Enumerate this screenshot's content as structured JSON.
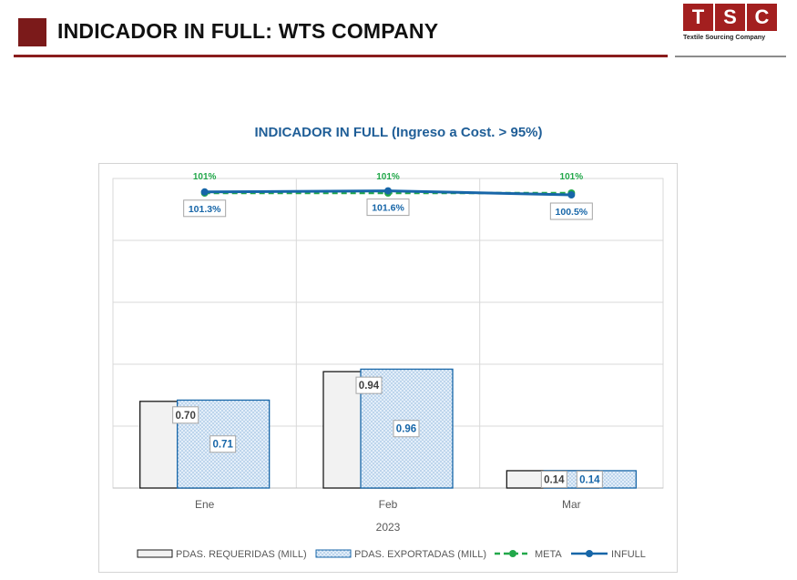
{
  "header": {
    "title": "INDICADOR IN FULL: WTS COMPANY"
  },
  "logo": {
    "letters": [
      "T",
      "S",
      "C"
    ],
    "tagline": "Textile Sourcing Company",
    "color": "#a31f1f"
  },
  "colors": {
    "accent": "#8a1c1c",
    "infull": "#1766a8",
    "meta": "#22a84a",
    "requeridas_fill": "#f2f2f2",
    "exportadas_fill": "#dbe9f7"
  },
  "chart_data": {
    "type": "bar",
    "title": "INDICADOR IN FULL (Ingreso a Cost. > 95%)",
    "categories": [
      "Ene",
      "Feb",
      "Mar"
    ],
    "xlabel": "2023",
    "series": [
      {
        "name": "PDAS. REQUERIDAS (MILL)",
        "type": "bar",
        "values": [
          0.7,
          0.94,
          0.14
        ],
        "labels": [
          "0.70",
          "0.94",
          "0.14"
        ]
      },
      {
        "name": "PDAS. EXPORTADAS (MILL)",
        "type": "bar",
        "values": [
          0.71,
          0.96,
          0.14
        ],
        "labels": [
          "0.71",
          "0.96",
          "0.14"
        ]
      },
      {
        "name": "META",
        "type": "line",
        "values": [
          101,
          101,
          101
        ],
        "labels": [
          "101%",
          "101%",
          "101%"
        ]
      },
      {
        "name": "INFULL",
        "type": "line",
        "values": [
          101.3,
          101.6,
          100.5
        ],
        "labels": [
          "101.3%",
          "101.6%",
          "100.5%"
        ]
      }
    ],
    "bar_ylim": [
      0,
      2.5
    ],
    "line_ylim": [
      20,
      105
    ],
    "grid": true,
    "legend_position": "bottom"
  }
}
